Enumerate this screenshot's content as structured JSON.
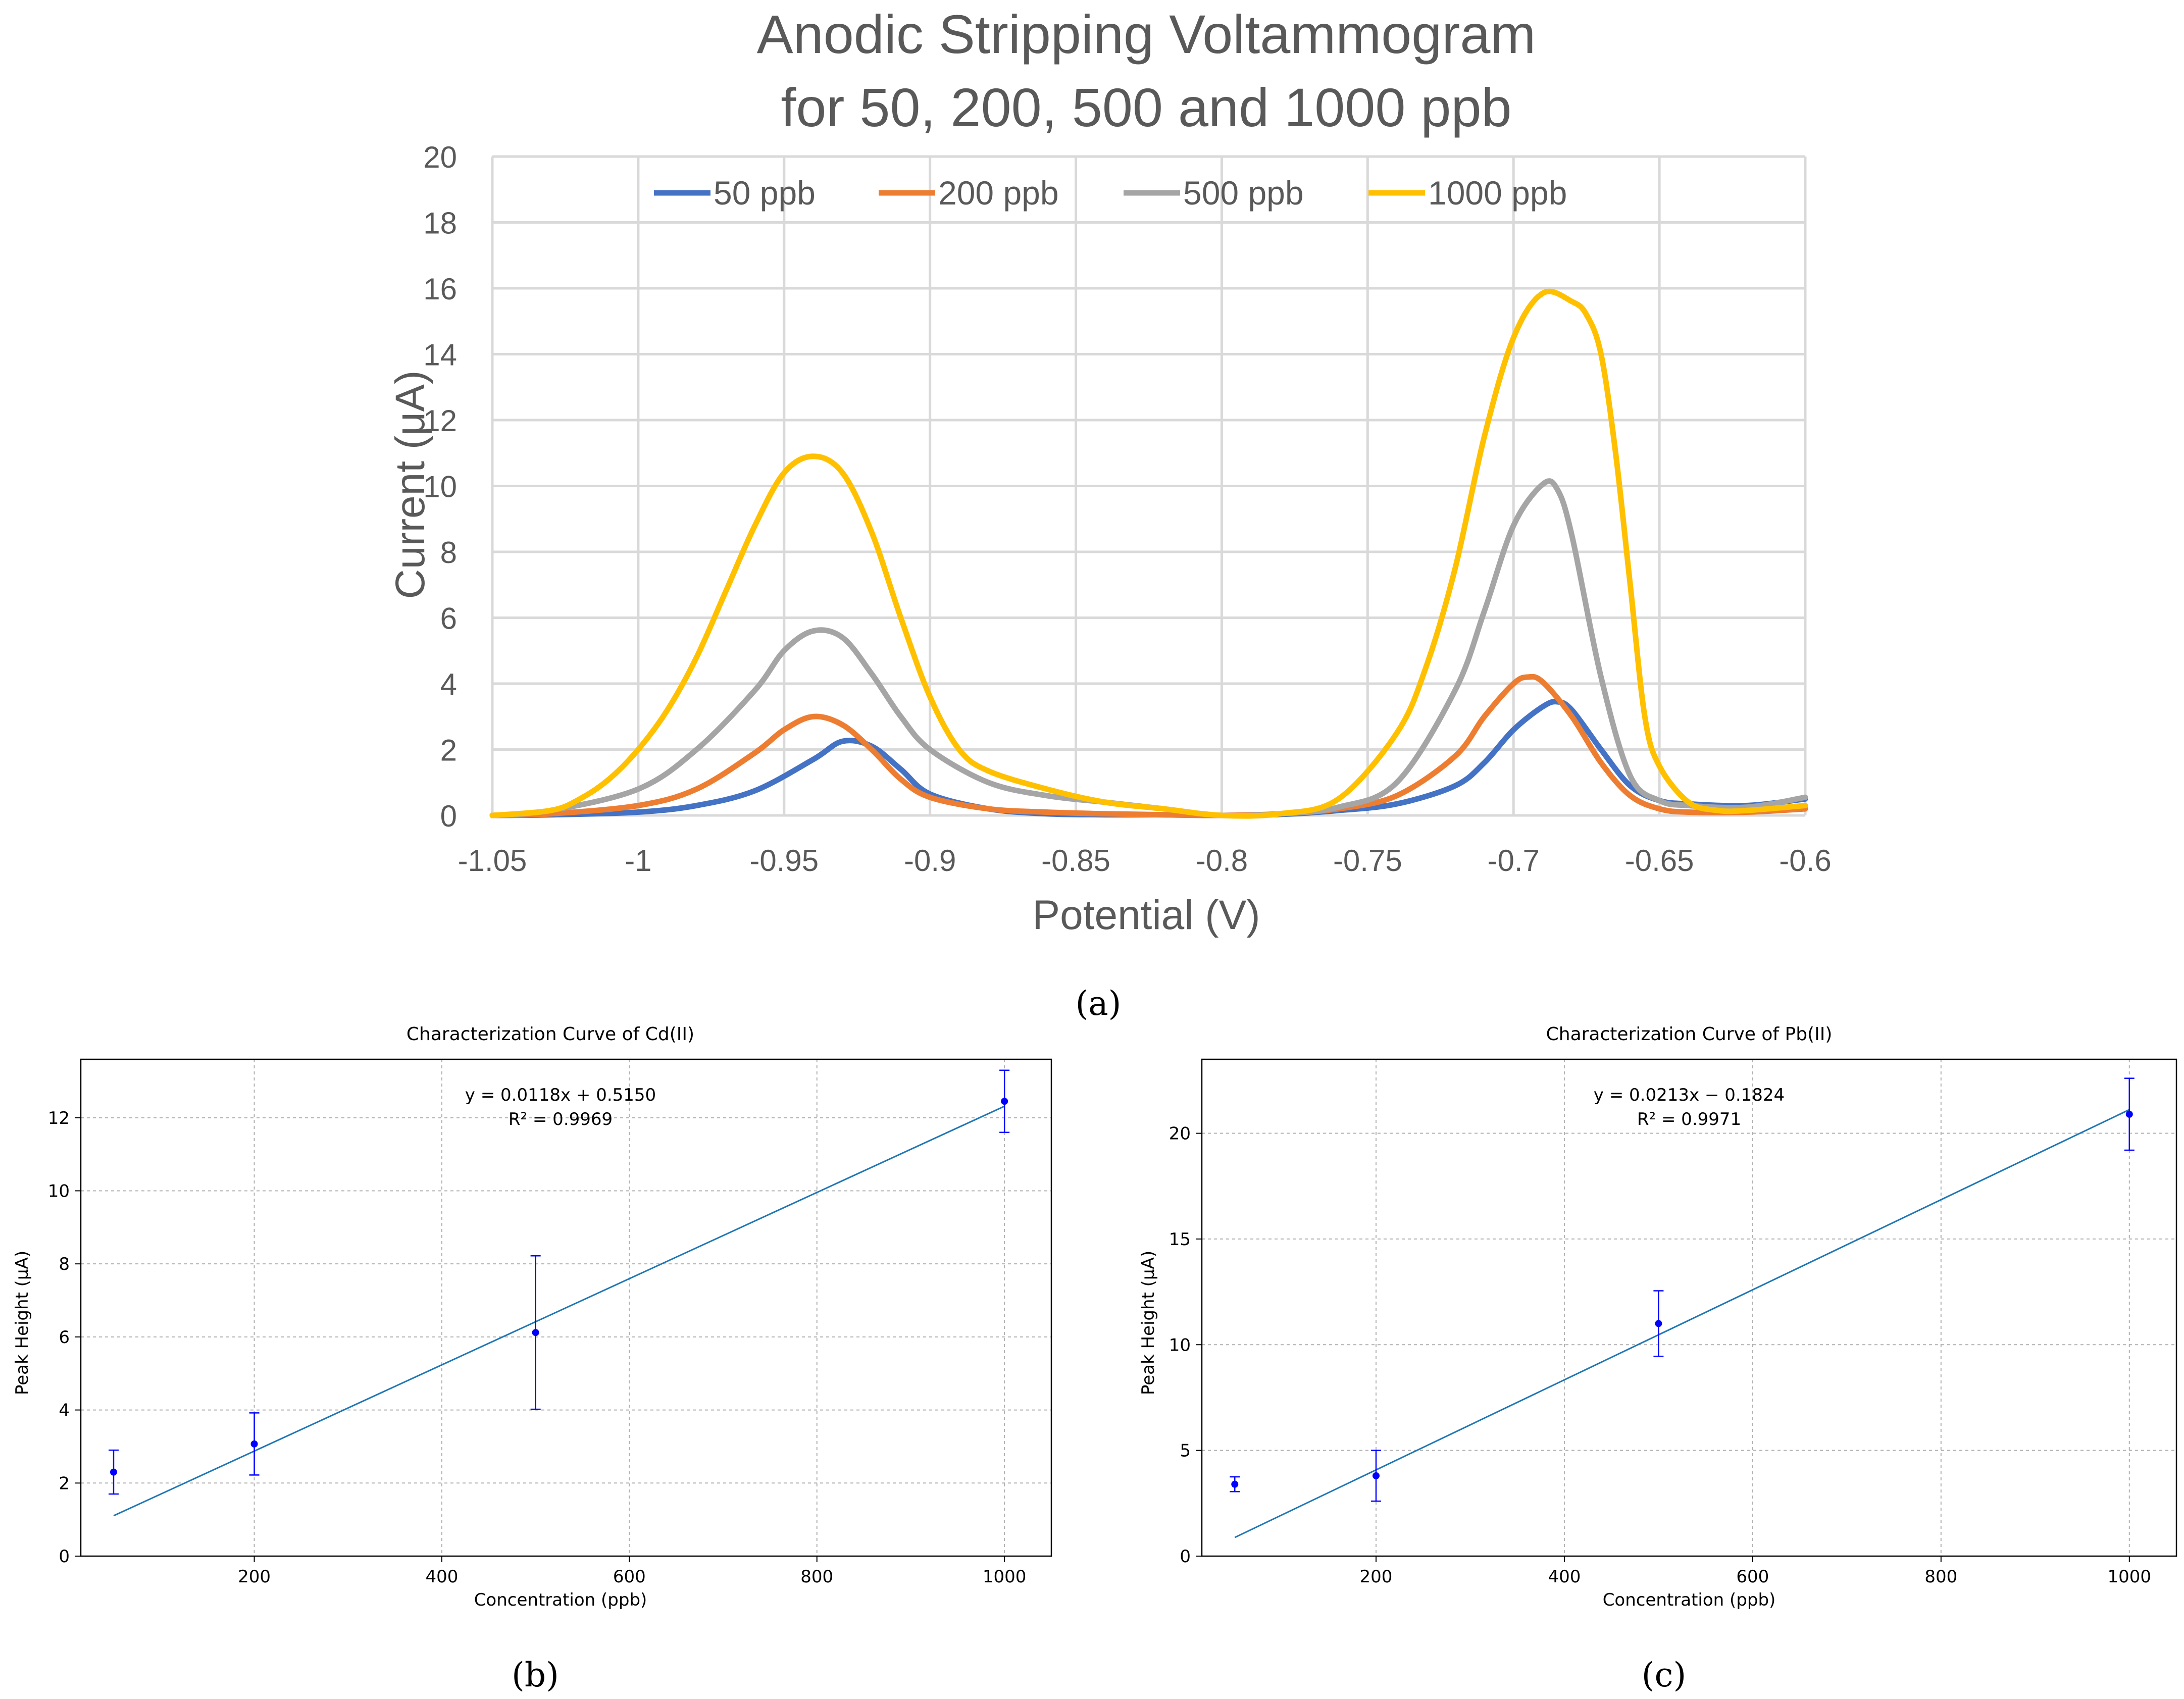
{
  "chart_data": [
    {
      "id": "a",
      "type": "line",
      "title_lines": [
        "Anodic Stripping Voltammogram",
        "for 50, 200, 500 and 1000 ppb"
      ],
      "xlabel": "Potential (V)",
      "ylabel": "Current (μA)",
      "xlim": [
        -1.05,
        -0.6
      ],
      "ylim": [
        0,
        20
      ],
      "x_ticks": [
        -1.05,
        -1,
        -0.95,
        -0.9,
        -0.85,
        -0.8,
        -0.75,
        -0.7,
        -0.65,
        -0.6
      ],
      "x_tick_labels": [
        "-1.05",
        "-1",
        "-0.95",
        "-0.9",
        "-0.85",
        "-0.8",
        "-0.75",
        "-0.7",
        "-0.65",
        "-0.6"
      ],
      "y_ticks": [
        0,
        2,
        4,
        6,
        8,
        10,
        12,
        14,
        16,
        18,
        20
      ],
      "y_tick_labels": [
        "0",
        "2",
        "4",
        "6",
        "8",
        "10",
        "12",
        "14",
        "16",
        "18",
        "20"
      ],
      "grid": true,
      "legend_position": "top",
      "series": [
        {
          "name": "50 ppb",
          "color": "#4472C4",
          "x": [
            -1.05,
            -1.03,
            -1.0,
            -0.98,
            -0.96,
            -0.94,
            -0.93,
            -0.92,
            -0.91,
            -0.9,
            -0.88,
            -0.86,
            -0.84,
            -0.82,
            -0.8,
            -0.78,
            -0.76,
            -0.74,
            -0.72,
            -0.71,
            -0.7,
            -0.69,
            -0.685,
            -0.68,
            -0.67,
            -0.66,
            -0.65,
            -0.64,
            -0.62,
            -0.6
          ],
          "y": [
            0.0,
            0.02,
            0.1,
            0.3,
            0.75,
            1.7,
            2.25,
            2.1,
            1.4,
            0.65,
            0.2,
            0.05,
            0.02,
            0.02,
            0.0,
            0.03,
            0.15,
            0.35,
            0.9,
            1.6,
            2.6,
            3.3,
            3.45,
            3.2,
            2.0,
            0.9,
            0.45,
            0.35,
            0.3,
            0.5
          ]
        },
        {
          "name": "200 ppb",
          "color": "#ED7D31",
          "x": [
            -1.05,
            -1.03,
            -1.0,
            -0.98,
            -0.96,
            -0.95,
            -0.94,
            -0.93,
            -0.92,
            -0.91,
            -0.9,
            -0.88,
            -0.86,
            -0.84,
            -0.82,
            -0.8,
            -0.78,
            -0.76,
            -0.74,
            -0.72,
            -0.71,
            -0.7,
            -0.695,
            -0.69,
            -0.68,
            -0.67,
            -0.66,
            -0.65,
            -0.64,
            -0.62,
            -0.6
          ],
          "y": [
            0.0,
            0.05,
            0.3,
            0.8,
            1.9,
            2.6,
            3.0,
            2.75,
            2.0,
            1.1,
            0.55,
            0.2,
            0.1,
            0.05,
            0.02,
            0.0,
            0.05,
            0.2,
            0.6,
            1.8,
            3.0,
            4.0,
            4.2,
            4.05,
            3.0,
            1.6,
            0.6,
            0.2,
            0.1,
            0.1,
            0.2
          ]
        },
        {
          "name": "500 ppb",
          "color": "#A5A5A5",
          "x": [
            -1.05,
            -1.03,
            -1.0,
            -0.98,
            -0.96,
            -0.95,
            -0.94,
            -0.93,
            -0.92,
            -0.91,
            -0.9,
            -0.88,
            -0.86,
            -0.84,
            -0.82,
            -0.8,
            -0.78,
            -0.76,
            -0.74,
            -0.72,
            -0.71,
            -0.7,
            -0.69,
            -0.685,
            -0.68,
            -0.67,
            -0.66,
            -0.65,
            -0.64,
            -0.62,
            -0.6
          ],
          "y": [
            0.0,
            0.15,
            0.8,
            2.0,
            3.8,
            5.0,
            5.6,
            5.4,
            4.3,
            3.0,
            2.0,
            1.0,
            0.6,
            0.4,
            0.2,
            0.0,
            0.05,
            0.25,
            1.0,
            3.8,
            6.2,
            8.8,
            10.05,
            9.9,
            8.5,
            4.2,
            1.2,
            0.45,
            0.3,
            0.25,
            0.55
          ]
        },
        {
          "name": "1000 ppb",
          "color": "#FFC000",
          "x": [
            -1.05,
            -1.03,
            -1.02,
            -1.01,
            -1.0,
            -0.99,
            -0.98,
            -0.97,
            -0.96,
            -0.95,
            -0.94,
            -0.93,
            -0.92,
            -0.91,
            -0.9,
            -0.89,
            -0.88,
            -0.86,
            -0.84,
            -0.82,
            -0.8,
            -0.78,
            -0.76,
            -0.74,
            -0.73,
            -0.72,
            -0.71,
            -0.7,
            -0.69,
            -0.68,
            -0.675,
            -0.67,
            -0.665,
            -0.66,
            -0.655,
            -0.65,
            -0.64,
            -0.63,
            -0.62,
            -0.6
          ],
          "y": [
            0.0,
            0.15,
            0.5,
            1.1,
            2.0,
            3.2,
            4.8,
            6.8,
            8.8,
            10.4,
            10.9,
            10.4,
            8.6,
            6.0,
            3.6,
            2.0,
            1.35,
            0.8,
            0.4,
            0.2,
            0.0,
            0.05,
            0.5,
            2.5,
            4.5,
            7.5,
            11.5,
            14.5,
            15.85,
            15.6,
            15.2,
            14.0,
            11.0,
            7.0,
            3.0,
            1.5,
            0.4,
            0.15,
            0.15,
            0.3
          ]
        }
      ]
    },
    {
      "id": "b",
      "type": "scatter",
      "title": "Characterization Curve of Cd(II)",
      "xlabel": "Concentration (ppb)",
      "ylabel": "Peak Height (μA)",
      "xlim": [
        15,
        1050
      ],
      "ylim": [
        0,
        13.6
      ],
      "x_ticks": [
        200,
        400,
        600,
        800,
        1000
      ],
      "x_tick_labels": [
        "200",
        "400",
        "600",
        "800",
        "1000"
      ],
      "y_ticks": [
        0,
        2,
        4,
        6,
        8,
        10,
        12
      ],
      "y_tick_labels": [
        "0",
        "2",
        "4",
        "6",
        "8",
        "10",
        "12"
      ],
      "grid": true,
      "points": {
        "x": [
          50,
          200,
          500,
          1000
        ],
        "y": [
          2.3,
          3.07,
          6.12,
          12.45
        ],
        "err": [
          0.6,
          0.85,
          2.1,
          0.85
        ],
        "color": "#0000FF"
      },
      "fit_line": {
        "slope": 0.0118,
        "intercept": 0.515,
        "x_range": [
          50,
          1000
        ],
        "color": "#1F77B4"
      },
      "equation": "y = 0.0118x + 0.5150",
      "r_squared": "R² = 0.9969",
      "caption": "(b)"
    },
    {
      "id": "c",
      "type": "scatter",
      "title": "Characterization Curve of Pb(II)",
      "xlabel": "Concentration (ppb)",
      "ylabel": "Peak Height (μA)",
      "xlim": [
        15,
        1050
      ],
      "ylim": [
        0,
        23.5
      ],
      "x_ticks": [
        200,
        400,
        600,
        800,
        1000
      ],
      "x_tick_labels": [
        "200",
        "400",
        "600",
        "800",
        "1000"
      ],
      "y_ticks": [
        0,
        5,
        10,
        15,
        20
      ],
      "y_tick_labels": [
        "0",
        "5",
        "10",
        "15",
        "20"
      ],
      "grid": true,
      "points": {
        "x": [
          50,
          200,
          500,
          1000
        ],
        "y": [
          3.4,
          3.8,
          11.0,
          20.9
        ],
        "err": [
          0.35,
          1.2,
          1.55,
          1.7
        ],
        "color": "#0000FF"
      },
      "fit_line": {
        "slope": 0.0213,
        "intercept": -0.1824,
        "x_range": [
          50,
          1000
        ],
        "color": "#1F77B4"
      },
      "equation": "y = 0.0213x − 0.1824",
      "r_squared": "R² = 0.9971",
      "caption": "(c)"
    }
  ],
  "captions": {
    "a": "(a)",
    "b": "(b)",
    "c": "(c)"
  }
}
